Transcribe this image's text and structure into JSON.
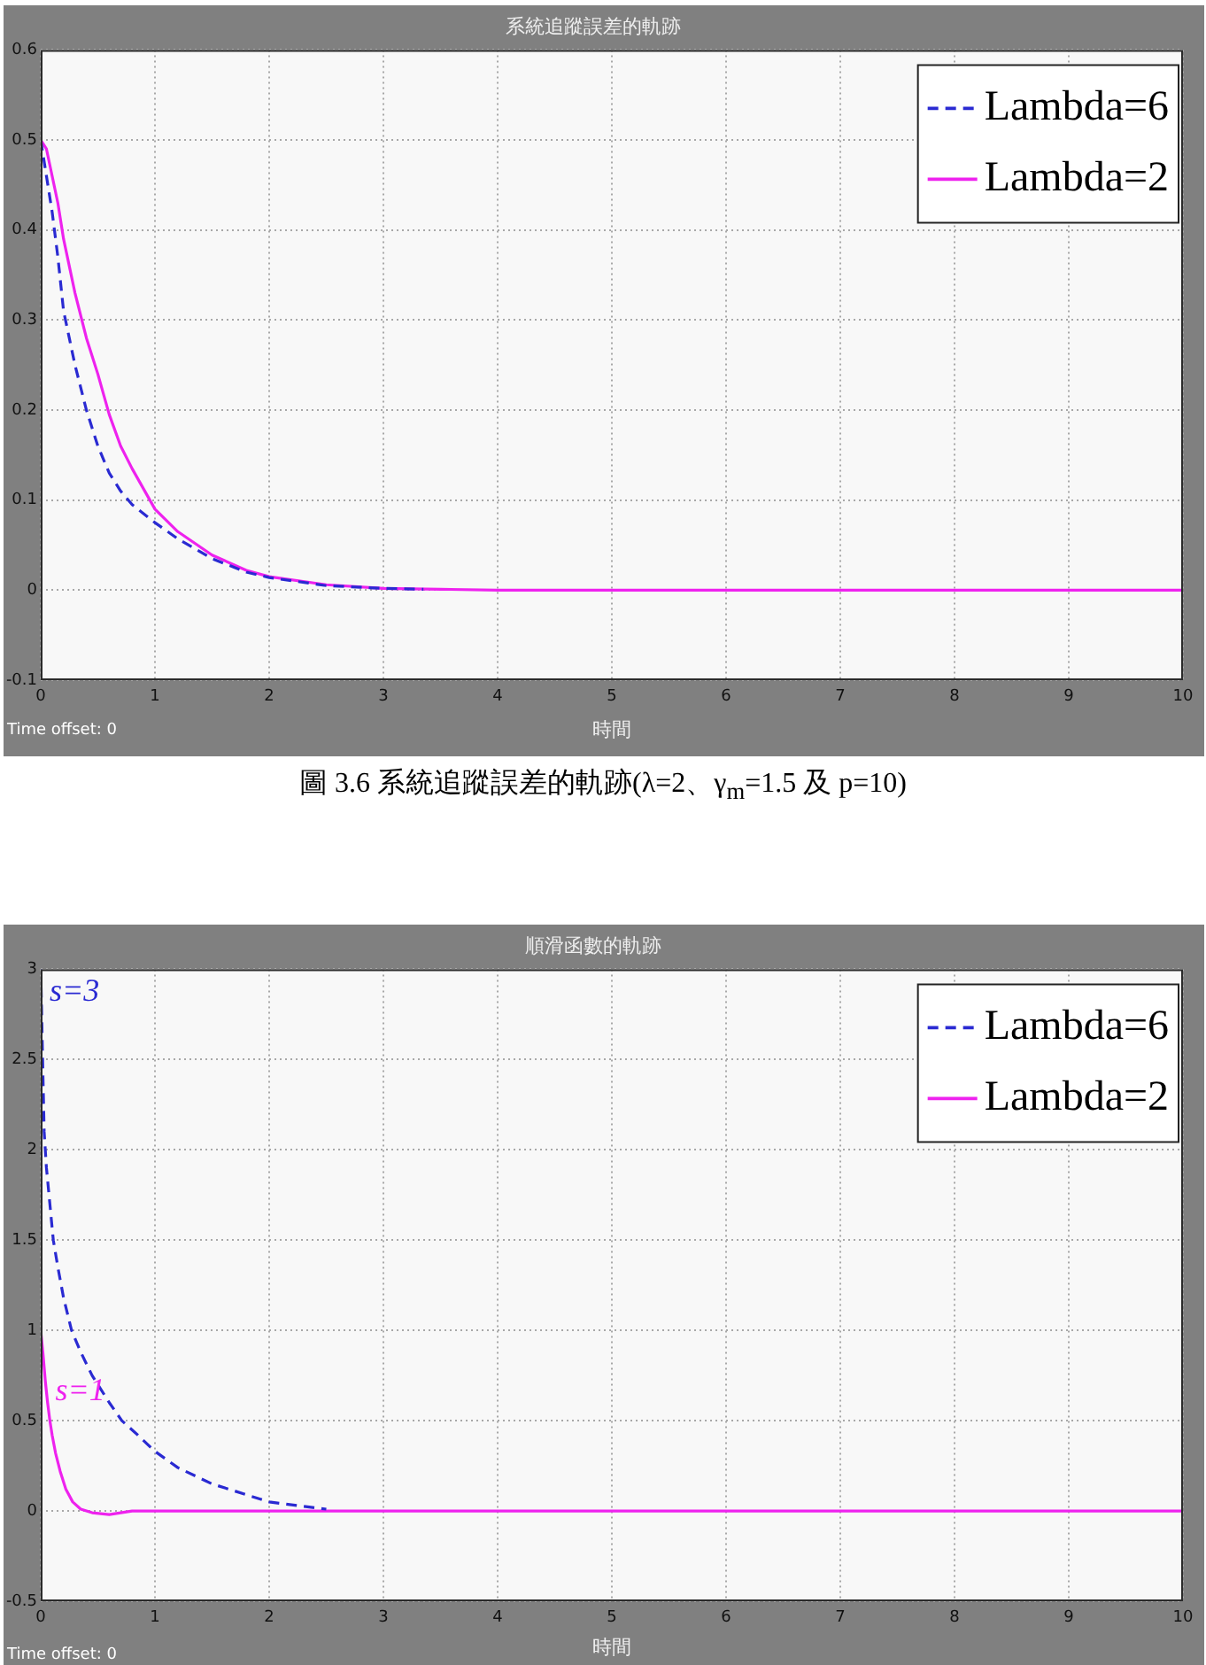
{
  "chart_data": [
    {
      "type": "line",
      "title": "系統追蹤誤差的軌跡",
      "xlabel": "時間",
      "xlim": [
        0,
        10
      ],
      "xticks": [
        0,
        1,
        2,
        3,
        4,
        5,
        6,
        7,
        8,
        9,
        10
      ],
      "ylim": [
        -0.1,
        0.6
      ],
      "yticks": [
        -0.1,
        0,
        0.1,
        0.2,
        0.3,
        0.4,
        0.5,
        0.6
      ],
      "grid": true,
      "legend": "top right",
      "series": [
        {
          "name": "Lambda=6",
          "color": "#2a2ad2",
          "line_style": "dashed",
          "x": [
            0,
            0.05,
            0.1,
            0.15,
            0.2,
            0.25,
            0.3,
            0.4,
            0.5,
            0.6,
            0.7,
            0.8,
            1,
            1.2,
            1.5,
            1.8,
            2,
            2.5,
            3,
            3.35
          ],
          "values": [
            0.5,
            0.46,
            0.42,
            0.37,
            0.31,
            0.28,
            0.25,
            0.2,
            0.16,
            0.13,
            0.11,
            0.095,
            0.075,
            0.057,
            0.035,
            0.02,
            0.014,
            0.005,
            0.002,
            0.001
          ]
        },
        {
          "name": "Lambda=2",
          "color": "#ee22ee",
          "line_style": "solid",
          "x": [
            0,
            0.05,
            0.1,
            0.15,
            0.2,
            0.3,
            0.4,
            0.5,
            0.6,
            0.7,
            0.8,
            1,
            1.2,
            1.5,
            1.8,
            2,
            2.5,
            3,
            3.5,
            4,
            10
          ],
          "values": [
            0.5,
            0.49,
            0.46,
            0.43,
            0.39,
            0.33,
            0.28,
            0.24,
            0.195,
            0.16,
            0.135,
            0.09,
            0.065,
            0.039,
            0.022,
            0.015,
            0.006,
            0.002,
            0.001,
            0,
            0
          ]
        }
      ],
      "annotations": [
        "Time offset: 0",
        "圖 3.6 系統追蹤誤差的軌跡(λ=2、γ$_{m}$=1.5 及 p=10)"
      ]
    },
    {
      "type": "line",
      "title": "順滑函數的軌跡",
      "xlabel": "時間",
      "xlim": [
        0,
        10
      ],
      "xticks": [
        0,
        1,
        2,
        3,
        4,
        5,
        6,
        7,
        8,
        9,
        10
      ],
      "ylim": [
        -0.5,
        3
      ],
      "yticks": [
        -0.5,
        0,
        0.5,
        1,
        1.5,
        2,
        2.5,
        3
      ],
      "grid": true,
      "legend": "top right",
      "series": [
        {
          "name": "Lambda=6",
          "color": "#2a2ad2",
          "line_style": "dashed",
          "x": [
            0,
            0.01,
            0.02,
            0.03,
            0.05,
            0.08,
            0.11,
            0.15,
            0.2,
            0.27,
            0.35,
            0.45,
            0.6,
            0.71,
            0.85,
            1,
            1.2,
            1.5,
            1.8,
            2,
            2.25,
            2.5
          ],
          "values": [
            3,
            2.7,
            2.4,
            2.1,
            1.9,
            1.7,
            1.5,
            1.35,
            1.18,
            1,
            0.88,
            0.75,
            0.6,
            0.5,
            0.42,
            0.33,
            0.24,
            0.15,
            0.09,
            0.05,
            0.03,
            0.01
          ]
        },
        {
          "name": "Lambda=2",
          "color": "#ee22ee",
          "line_style": "solid",
          "x": [
            0,
            0.02,
            0.04,
            0.06,
            0.08,
            0.1,
            0.13,
            0.17,
            0.22,
            0.28,
            0.35,
            0.45,
            0.6,
            0.7,
            0.8,
            1,
            10
          ],
          "values": [
            1,
            0.87,
            0.72,
            0.6,
            0.5,
            0.42,
            0.32,
            0.22,
            0.12,
            0.05,
            0.01,
            -0.01,
            -0.02,
            -0.01,
            0,
            0,
            0
          ]
        }
      ],
      "annotations": [
        {
          "text": "s=3",
          "x": 0,
          "y": 3
        },
        {
          "text": "s=1",
          "x": 0.05,
          "y": 0.66
        },
        "Time offset: 0"
      ]
    }
  ]
}
